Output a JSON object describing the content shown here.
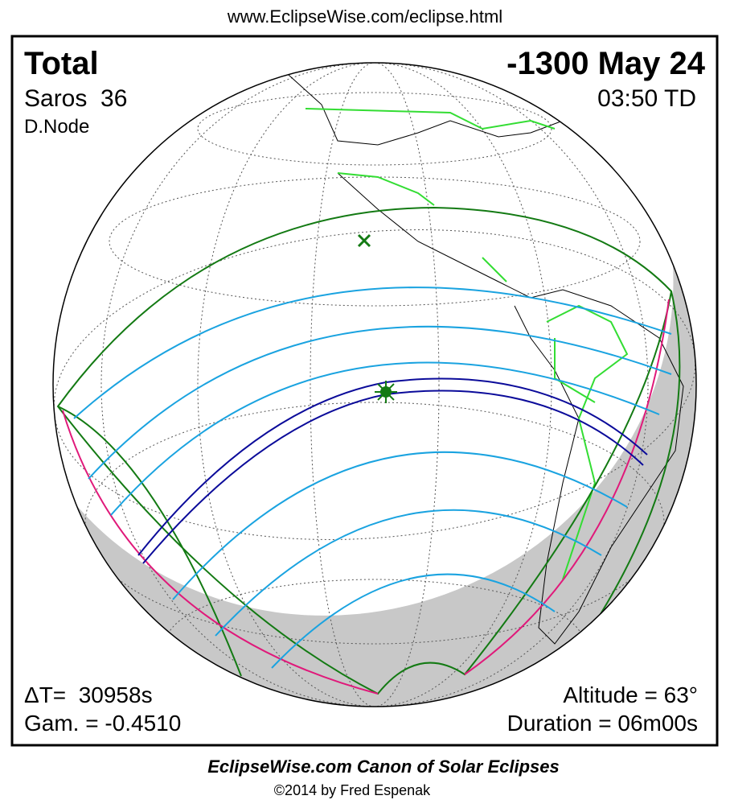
{
  "header": {
    "url": "www.EclipseWise.com/eclipse.html"
  },
  "eclipse": {
    "type": "Total",
    "date": "-1300 May 24",
    "saros": "Saros  36",
    "time": "03:50 TD",
    "node": "D.Node",
    "delta_t": "ΔT=  30958s",
    "gamma": "Gam. = -0.4510",
    "altitude": "Altitude = 63°",
    "duration": "Duration = 06m00s"
  },
  "footer": {
    "title": "EclipseWise.com Canon of Solar Eclipses",
    "copyright": "©2014 by Fred Espenak"
  }
}
